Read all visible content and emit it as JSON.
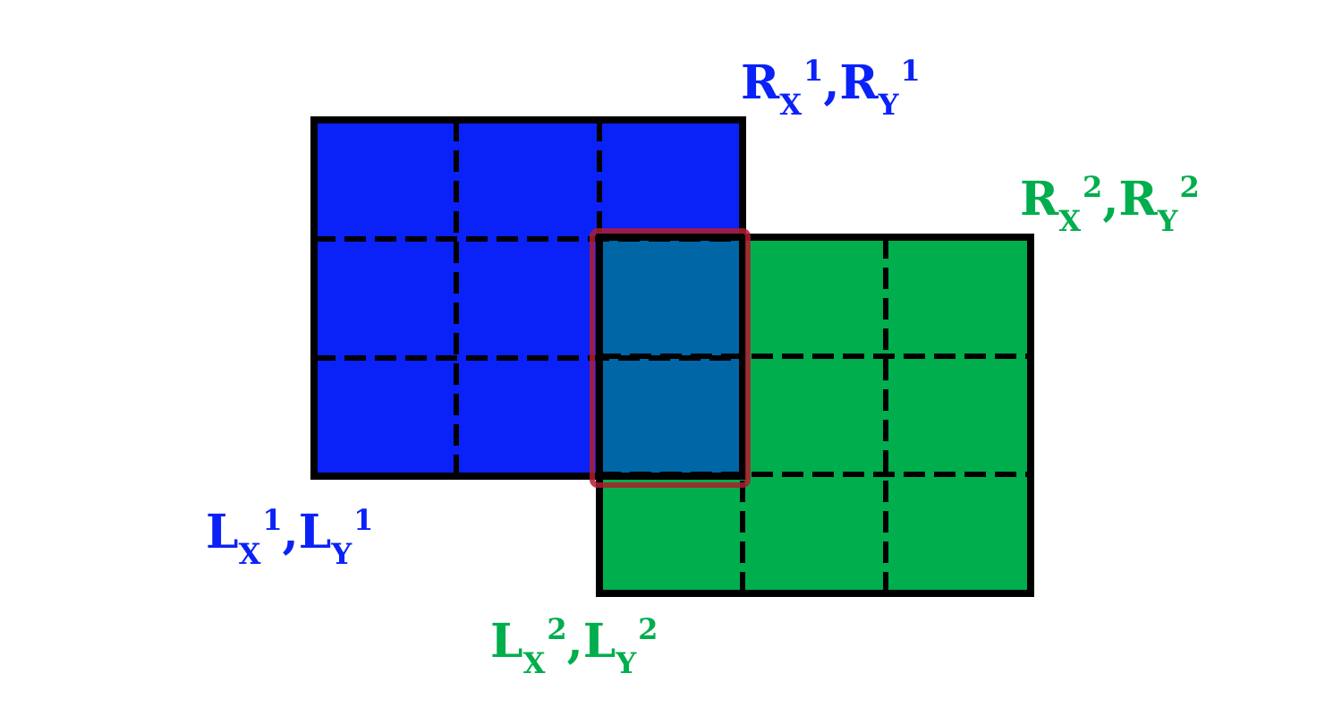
{
  "colors": {
    "blue": "#0a22f7",
    "green": "#00ae4d",
    "overlap": "#0066a6",
    "overlap_border": "#b01c2e",
    "outline": "#000000"
  },
  "labels": {
    "r1": {
      "base1": "R",
      "sub1": "X",
      "sup1": "1",
      "sep": ",",
      "base2": "R",
      "sub2": "Y",
      "sup2": "1"
    },
    "r2": {
      "base1": "R",
      "sub1": "X",
      "sup1": "2",
      "sep": ",",
      "base2": "R",
      "sub2": "Y",
      "sup2": "2"
    },
    "l1": {
      "base1": "L",
      "sub1": "X",
      "sup1": "1",
      "sep": ",",
      "base2": "L",
      "sub2": "Y",
      "sup2": "1"
    },
    "l2": {
      "base1": "L",
      "sub1": "X",
      "sup1": "2",
      "sep": ",",
      "base2": "L",
      "sub2": "Y",
      "sup2": "2"
    }
  }
}
